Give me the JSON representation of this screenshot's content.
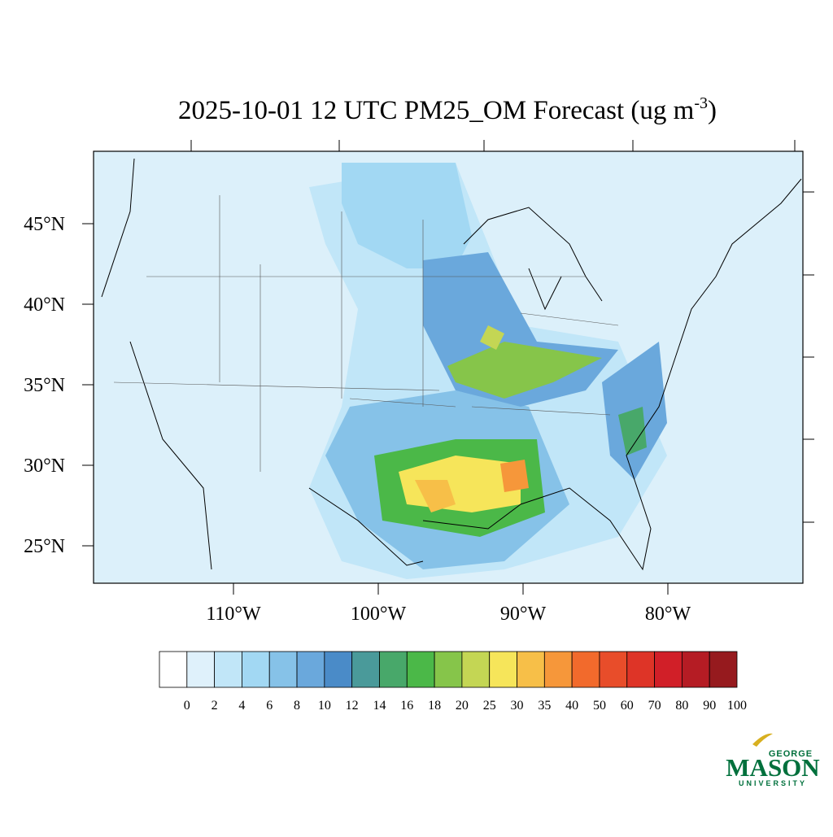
{
  "title": "2025-10-01 12 UTC PM25_OM Forecast (ug m",
  "title_superscript": "-3",
  "title_end": ")",
  "map": {
    "lat_ticks": [
      {
        "value": 45,
        "label": "45°N"
      },
      {
        "value": 40,
        "label": "40°N"
      },
      {
        "value": 35,
        "label": "35°N"
      },
      {
        "value": 30,
        "label": "30°N"
      },
      {
        "value": 25,
        "label": "25°N"
      }
    ],
    "lon_ticks": [
      {
        "value": -110,
        "label": "110°W"
      },
      {
        "value": -100,
        "label": "100°W"
      },
      {
        "value": -90,
        "label": "90°W"
      },
      {
        "value": -80,
        "label": "80°W"
      }
    ]
  },
  "colorbar": {
    "levels": [
      0,
      2,
      4,
      6,
      8,
      10,
      12,
      14,
      16,
      18,
      20,
      25,
      30,
      35,
      40,
      50,
      60,
      70,
      80,
      90,
      100
    ],
    "colors": [
      "#ffffff",
      "#dff1fb",
      "#c1e6f8",
      "#a2d8f3",
      "#86c2e8",
      "#6aa8dc",
      "#4a8bc8",
      "#4a9a9a",
      "#48a86a",
      "#4bb848",
      "#86c54a",
      "#c4d654",
      "#f6e55a",
      "#f7bf48",
      "#f6973a",
      "#f26a2c",
      "#e84d2a",
      "#de3427",
      "#d11f28",
      "#b51c24",
      "#961a1e"
    ]
  },
  "logo": {
    "top": "GEORGE",
    "main": "MASON",
    "bottom": "UNIVERSITY"
  }
}
